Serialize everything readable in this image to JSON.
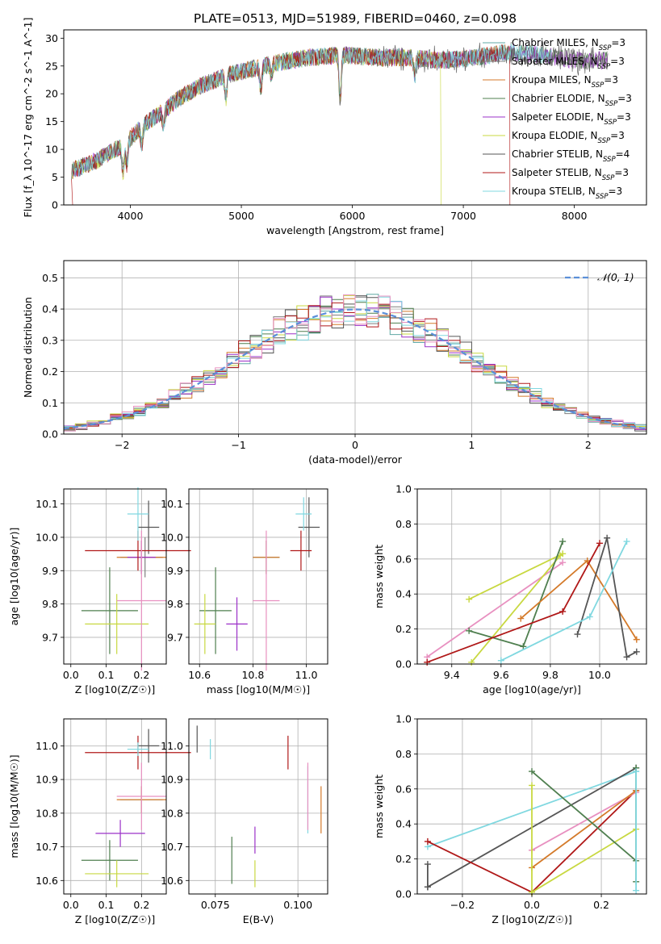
{
  "figure": {
    "title": "PLATE=0513, MJD=51989, FIBERID=0460, z=0.098"
  },
  "colors": {
    "Chabrier MILES": "#5fa8a4",
    "Salpeter MILES": "#7f7f7f",
    "Kroupa MILES": "#d47a2a",
    "Chabrier ELODIE": "#4f7f4f",
    "Salpeter ELODIE": "#9b30c8",
    "Kroupa ELODIE": "#c8d840",
    "Chabrier STELIB": "#555555",
    "Salpeter STELIB": "#b01818",
    "Kroupa STELIB": "#80d8e0",
    "extra_pink": "#e890c0",
    "normal_curve": "#5b8fd8"
  },
  "chart_data": [
    {
      "type": "line",
      "title": "PLATE=0513, MJD=51989, FIBERID=0460, z=0.098",
      "xlabel": "wavelength [Angstrom, rest frame]",
      "ylabel": "Flux [f_λ 10^-17 erg cm^-2 s^-1 A^-1]",
      "xlim": [
        3400,
        8650
      ],
      "ylim": [
        0,
        31.5
      ],
      "xticks": [
        "4000",
        "5000",
        "6000",
        "7000",
        "8000"
      ],
      "yticks": [
        "0",
        "5",
        "10",
        "15",
        "20",
        "25",
        "30"
      ],
      "legend_position": "right",
      "legend": [
        {
          "label": "Chabrier MILES, N_SSP=3"
        },
        {
          "label": "Salpeter MILES, N_SSP=3"
        },
        {
          "label": "Kroupa MILES, N_SSP=3"
        },
        {
          "label": "Chabrier ELODIE, N_SSP=3"
        },
        {
          "label": "Salpeter ELODIE, N_SSP=3"
        },
        {
          "label": "Kroupa ELODIE, N_SSP=3"
        },
        {
          "label": "Chabrier STELIB, N_SSP=4"
        },
        {
          "label": "Salpeter STELIB, N_SSP=3"
        },
        {
          "label": "Kroupa STELIB, N_SSP=3"
        }
      ],
      "continuum": {
        "x": [
          3450,
          3700,
          3950,
          4100,
          4300,
          4500,
          4700,
          4900,
          5100,
          5300,
          5600,
          5900,
          6200,
          6500,
          6800,
          7100,
          7400,
          7700,
          8000,
          8300
        ],
        "y": [
          6,
          8,
          11,
          14,
          17,
          20,
          22,
          23.5,
          24.5,
          25.5,
          26.5,
          27,
          26.5,
          26.5,
          26,
          26.5,
          27.5,
          27,
          26,
          26
        ]
      }
    },
    {
      "type": "histogram",
      "xlabel": "(data-model)/error",
      "ylabel": "Normed distribution",
      "xlim": [
        -2.5,
        2.5
      ],
      "ylim": [
        0,
        0.555
      ],
      "xticks": [
        "−2",
        "−1",
        "0",
        "1",
        "2"
      ],
      "yticks": [
        "0.0",
        "0.1",
        "0.2",
        "0.3",
        "0.4",
        "0.5"
      ],
      "legend_position": "top-right",
      "legend": [
        {
          "label": "𝒩(0, 1)"
        }
      ],
      "bin_width": 0.1
    },
    {
      "type": "scatter",
      "xlabel": "Z [log10(Z/Z☉)]",
      "ylabel": "age [log10(age/yr)]",
      "xlim": [
        -0.02,
        0.27
      ],
      "ylim": [
        9.62,
        10.145
      ],
      "xticks": [
        "0.0",
        "0.1",
        "0.2"
      ],
      "yticks": [
        "9.7",
        "9.8",
        "9.9",
        "10.0",
        "10.1"
      ],
      "points": [
        {
          "c": "Chabrier MILES",
          "x": 0.2,
          "y": 9.94,
          "xe": 0.06,
          "ye": 0.05
        },
        {
          "c": "Salpeter MILES",
          "x": 0.21,
          "y": 9.94,
          "xe": 0.05,
          "ye": 0.06
        },
        {
          "c": "Kroupa MILES",
          "x": 0.2,
          "y": 9.94,
          "xe": 0.07,
          "ye": 0.05
        },
        {
          "c": "Chabrier ELODIE",
          "x": 0.11,
          "y": 9.78,
          "xe": 0.08,
          "ye": 0.13
        },
        {
          "c": "Salpeter ELODIE",
          "x": 0.2,
          "y": 9.94,
          "xe": 0.04,
          "ye": 0.05
        },
        {
          "c": "Kroupa ELODIE",
          "x": 0.13,
          "y": 9.74,
          "xe": 0.09,
          "ye": 0.09
        },
        {
          "c": "Chabrier STELIB",
          "x": 0.22,
          "y": 10.03,
          "xe": 0.03,
          "ye": 0.08
        },
        {
          "c": "Salpeter STELIB",
          "x": 0.19,
          "y": 9.96,
          "xe": 0.15,
          "ye": 0.06
        },
        {
          "c": "Kroupa STELIB",
          "x": 0.19,
          "y": 10.07,
          "xe": 0.03,
          "ye": 0.08
        },
        {
          "c": "extra_pink",
          "x": 0.2,
          "y": 9.81,
          "xe": 0.07,
          "ye": 0.21
        }
      ]
    },
    {
      "type": "scatter",
      "xlabel": "mass [log10(M/M☉)]",
      "xlim": [
        10.56,
        11.08
      ],
      "ylim": [
        9.62,
        10.145
      ],
      "xticks": [
        "10.6",
        "10.8",
        "11.0"
      ],
      "yticks": [
        "9.7",
        "9.8",
        "9.9",
        "10.0",
        "10.1"
      ],
      "points": [
        {
          "c": "Chabrier MILES",
          "x": 10.85,
          "y": 9.94,
          "xe": 0.05,
          "ye": 0.05
        },
        {
          "c": "Kroupa MILES",
          "x": 10.85,
          "y": 9.94,
          "xe": 0.05,
          "ye": 0.05
        },
        {
          "c": "Chabrier ELODIE",
          "x": 10.66,
          "y": 9.78,
          "xe": 0.06,
          "ye": 0.13
        },
        {
          "c": "Salpeter ELODIE",
          "x": 10.74,
          "y": 9.74,
          "xe": 0.04,
          "ye": 0.08
        },
        {
          "c": "Kroupa ELODIE",
          "x": 10.62,
          "y": 9.74,
          "xe": 0.04,
          "ye": 0.09
        },
        {
          "c": "Chabrier STELIB",
          "x": 11.01,
          "y": 10.03,
          "xe": 0.04,
          "ye": 0.09
        },
        {
          "c": "Salpeter STELIB",
          "x": 10.98,
          "y": 9.96,
          "xe": 0.04,
          "ye": 0.06
        },
        {
          "c": "Kroupa STELIB",
          "x": 10.99,
          "y": 10.07,
          "xe": 0.03,
          "ye": 0.05
        },
        {
          "c": "extra_pink",
          "x": 10.85,
          "y": 9.81,
          "xe": 0.05,
          "ye": 0.21
        }
      ]
    },
    {
      "type": "line",
      "xlabel": "age [log10(age/yr)]",
      "ylabel": "mass weight",
      "xlim": [
        9.26,
        10.19
      ],
      "ylim": [
        0,
        1
      ],
      "xticks": [
        "9.4",
        "9.6",
        "9.8",
        "10.0"
      ],
      "yticks": [
        "0.0",
        "0.2",
        "0.4",
        "0.6",
        "0.8",
        "1.0"
      ],
      "series": [
        {
          "c": "extra_pink",
          "x": [
            9.3,
            9.85
          ],
          "y": [
            0.04,
            0.58
          ]
        },
        {
          "c": "Kroupa ELODIE",
          "x": [
            9.47,
            9.85
          ],
          "y": [
            0.37,
            0.63
          ]
        },
        {
          "c": "Kroupa ELODIE",
          "x": [
            9.48,
            9.84
          ],
          "y": [
            0.01,
            0.62
          ]
        },
        {
          "c": "Chabrier ELODIE",
          "x": [
            9.47,
            9.69,
            9.85
          ],
          "y": [
            0.19,
            0.1,
            0.7
          ]
        },
        {
          "c": "Kroupa MILES",
          "x": [
            9.68,
            9.95,
            10.15
          ],
          "y": [
            0.26,
            0.59,
            0.14
          ]
        },
        {
          "c": "Salpeter STELIB",
          "x": [
            9.3,
            9.85,
            10.0
          ],
          "y": [
            0.01,
            0.3,
            0.69
          ]
        },
        {
          "c": "Chabrier STELIB",
          "x": [
            9.91,
            10.03,
            10.11,
            10.15
          ],
          "y": [
            0.17,
            0.72,
            0.04,
            0.07
          ]
        },
        {
          "c": "Kroupa STELIB",
          "x": [
            9.6,
            9.96,
            10.11
          ],
          "y": [
            0.02,
            0.27,
            0.7
          ]
        }
      ]
    },
    {
      "type": "scatter",
      "xlabel": "Z [log10(Z/Z☉)]",
      "ylabel": "mass [log10(M/M☉)]",
      "xlim": [
        -0.02,
        0.27
      ],
      "ylim": [
        10.56,
        11.08
      ],
      "xticks": [
        "0.0",
        "0.1",
        "0.2"
      ],
      "yticks": [
        "10.6",
        "10.7",
        "10.8",
        "10.9",
        "11.0"
      ],
      "points": [
        {
          "c": "Chabrier MILES",
          "x": 0.2,
          "y": 10.84,
          "xe": 0.06,
          "ye": 0.04
        },
        {
          "c": "Kroupa MILES",
          "x": 0.2,
          "y": 10.84,
          "xe": 0.07,
          "ye": 0.04
        },
        {
          "c": "Chabrier ELODIE",
          "x": 0.11,
          "y": 10.66,
          "xe": 0.08,
          "ye": 0.06
        },
        {
          "c": "Salpeter ELODIE",
          "x": 0.14,
          "y": 10.74,
          "xe": 0.07,
          "ye": 0.04
        },
        {
          "c": "Kroupa ELODIE",
          "x": 0.13,
          "y": 10.62,
          "xe": 0.09,
          "ye": 0.04
        },
        {
          "c": "Chabrier STELIB",
          "x": 0.22,
          "y": 11.0,
          "xe": 0.03,
          "ye": 0.05
        },
        {
          "c": "Salpeter STELIB",
          "x": 0.19,
          "y": 10.98,
          "xe": 0.15,
          "ye": 0.05
        },
        {
          "c": "Kroupa STELIB",
          "x": 0.19,
          "y": 10.99,
          "xe": 0.03,
          "ye": 0.02
        },
        {
          "c": "extra_pink",
          "x": 0.2,
          "y": 10.85,
          "xe": 0.07,
          "ye": 0.1
        }
      ]
    },
    {
      "type": "scatter",
      "xlabel": "E(B-V)",
      "xlim": [
        0.067,
        0.109
      ],
      "ylim": [
        10.56,
        11.08
      ],
      "xticks": [
        "0.075",
        "0.100"
      ],
      "yticks": [
        "10.6",
        "10.7",
        "10.8",
        "10.9",
        "11.0"
      ],
      "points": [
        {
          "c": "Chabrier STELIB",
          "x": 0.0695,
          "y": 11.02,
          "xe": 0,
          "ye": 0.04
        },
        {
          "c": "Kroupa STELIB",
          "x": 0.0735,
          "y": 10.99,
          "xe": 0,
          "ye": 0.03
        },
        {
          "c": "Chabrier ELODIE",
          "x": 0.08,
          "y": 10.66,
          "xe": 0,
          "ye": 0.07
        },
        {
          "c": "Kroupa ELODIE",
          "x": 0.087,
          "y": 10.62,
          "xe": 0,
          "ye": 0.04
        },
        {
          "c": "Salpeter ELODIE",
          "x": 0.087,
          "y": 10.72,
          "xe": 0,
          "ye": 0.04
        },
        {
          "c": "Salpeter STELIB",
          "x": 0.097,
          "y": 10.98,
          "xe": 0,
          "ye": 0.05
        },
        {
          "c": "Kroupa STELIB",
          "x": 0.103,
          "y": 10.84,
          "xe": 0,
          "ye": 0.1
        },
        {
          "c": "extra_pink",
          "x": 0.103,
          "y": 10.85,
          "xe": 0,
          "ye": 0.1
        },
        {
          "c": "Kroupa MILES",
          "x": 0.107,
          "y": 10.81,
          "xe": 0,
          "ye": 0.07
        }
      ]
    },
    {
      "type": "line",
      "xlabel": "Z [log10(Z/Z☉)]",
      "ylabel": "mass weight",
      "xlim": [
        -0.33,
        0.33
      ],
      "ylim": [
        0,
        1
      ],
      "xticks": [
        "−0.2",
        "0.0",
        "0.2"
      ],
      "yticks": [
        "0.0",
        "0.2",
        "0.4",
        "0.6",
        "0.8",
        "1.0"
      ],
      "series": [
        {
          "c": "Kroupa STELIB",
          "x": [
            -0.3,
            0.3
          ],
          "y": [
            0.27,
            0.7
          ]
        },
        {
          "c": "Chabrier STELIB",
          "x": [
            -0.3,
            0.3
          ],
          "y": [
            0.04,
            0.72
          ]
        },
        {
          "c": "Chabrier STELIB",
          "x": [
            -0.3,
            -0.3
          ],
          "y": [
            0.04,
            0.17
          ]
        },
        {
          "c": "Salpeter STELIB",
          "x": [
            -0.3,
            0.0,
            0.3
          ],
          "y": [
            0.3,
            0.01,
            0.59
          ]
        },
        {
          "c": "extra_pink",
          "x": [
            0.0,
            0.3
          ],
          "y": [
            0.25,
            0.58
          ]
        },
        {
          "c": "Kroupa MILES",
          "x": [
            0.0,
            0.3
          ],
          "y": [
            0.15,
            0.59
          ]
        },
        {
          "c": "Kroupa ELODIE",
          "x": [
            0.0,
            0.3
          ],
          "y": [
            0.01,
            0.37
          ]
        },
        {
          "c": "Chabrier ELODIE",
          "x": [
            0.0,
            0.3
          ],
          "y": [
            0.7,
            0.19
          ]
        },
        {
          "c": "Kroupa ELODIE",
          "x": [
            0.0,
            0.0
          ],
          "y": [
            0.01,
            0.62
          ]
        },
        {
          "c": "Chabrier ELODIE",
          "x": [
            0.3,
            0.3
          ],
          "y": [
            0.07,
            0.72
          ]
        },
        {
          "c": "Kroupa STELIB",
          "x": [
            0.3,
            0.3
          ],
          "y": [
            0.02,
            0.7
          ]
        }
      ]
    }
  ]
}
